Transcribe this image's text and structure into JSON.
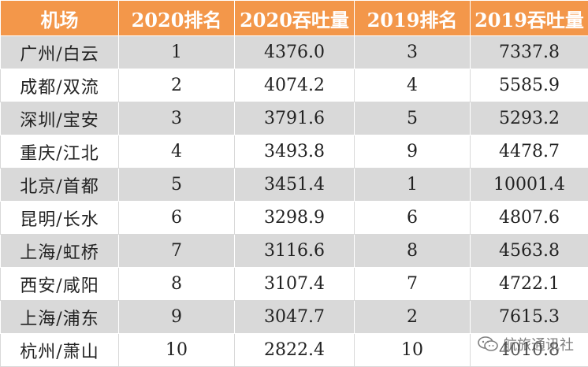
{
  "chart_data": {
    "type": "table",
    "columns": [
      "机场",
      "2020排名",
      "2020吞吐量",
      "2019排名",
      "2019吞吐量"
    ],
    "rows": [
      [
        "广州/白云",
        "1",
        "4376.0",
        "3",
        "7337.8"
      ],
      [
        "成都/双流",
        "2",
        "4074.2",
        "4",
        "5585.9"
      ],
      [
        "深圳/宝安",
        "3",
        "3791.6",
        "5",
        "5293.2"
      ],
      [
        "重庆/江北",
        "4",
        "3493.8",
        "9",
        "4478.7"
      ],
      [
        "北京/首都",
        "5",
        "3451.4",
        "1",
        "10001.4"
      ],
      [
        "昆明/长水",
        "6",
        "3298.9",
        "6",
        "4807.6"
      ],
      [
        "上海/虹桥",
        "7",
        "3116.6",
        "8",
        "4563.8"
      ],
      [
        "西安/咸阳",
        "8",
        "3107.4",
        "7",
        "4722.1"
      ],
      [
        "上海/浦东",
        "9",
        "3047.7",
        "2",
        "7615.3"
      ],
      [
        "杭州/萧山",
        "10",
        "2822.4",
        "10",
        "4010.8"
      ]
    ],
    "header_color": "#f3974a",
    "stripe_color": "#d9d9d9"
  },
  "watermark": {
    "text": "航旅通讯社",
    "icon": "wechat-icon"
  }
}
